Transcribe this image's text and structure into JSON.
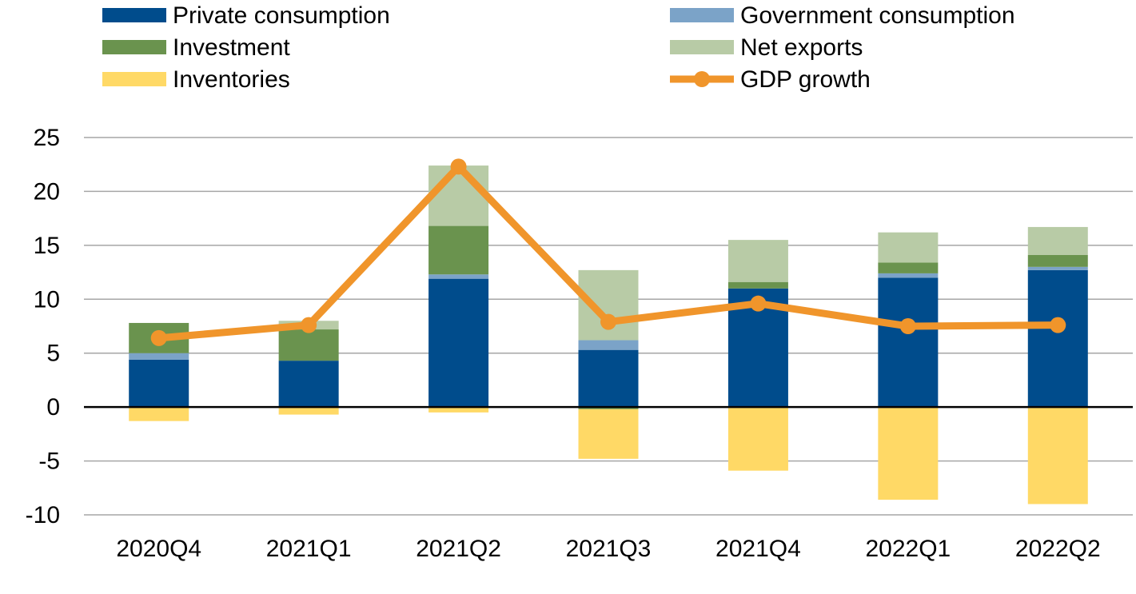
{
  "chart_data": {
    "type": "bar",
    "stacked": true,
    "title": "",
    "xlabel": "",
    "ylabel": "",
    "categories": [
      "2020Q4",
      "2021Q1",
      "2021Q2",
      "2021Q3",
      "2021Q4",
      "2022Q1",
      "2022Q2"
    ],
    "ylim": [
      -10,
      25
    ],
    "yticks": [
      -10,
      -5,
      0,
      5,
      10,
      15,
      20,
      25
    ],
    "grid": true,
    "legend_position": "top",
    "series": [
      {
        "name": "Private consumption",
        "kind": "bar",
        "color": "#004C8C",
        "values": [
          4.4,
          4.3,
          11.9,
          5.3,
          11.0,
          12.0,
          12.7
        ]
      },
      {
        "name": "Government consumption",
        "kind": "bar",
        "color": "#7BA3C8",
        "values": [
          0.6,
          0.0,
          0.4,
          0.9,
          0.0,
          0.4,
          0.3
        ]
      },
      {
        "name": "Investment",
        "kind": "bar",
        "color": "#6A934E",
        "values": [
          2.8,
          2.9,
          4.5,
          -0.2,
          0.6,
          1.0,
          1.1
        ]
      },
      {
        "name": "Net exports",
        "kind": "bar",
        "color": "#B8CBA6",
        "values": [
          0.0,
          0.8,
          5.6,
          6.5,
          3.9,
          2.8,
          2.6
        ]
      },
      {
        "name": "Inventories",
        "kind": "bar",
        "color": "#FFD966",
        "values": [
          -1.3,
          -0.7,
          -0.5,
          -4.6,
          -5.9,
          -8.6,
          -9.0
        ]
      },
      {
        "name": "GDP growth",
        "kind": "line",
        "color": "#F0952B",
        "values": [
          6.4,
          7.6,
          22.3,
          7.9,
          9.6,
          7.5,
          7.6
        ]
      }
    ]
  }
}
